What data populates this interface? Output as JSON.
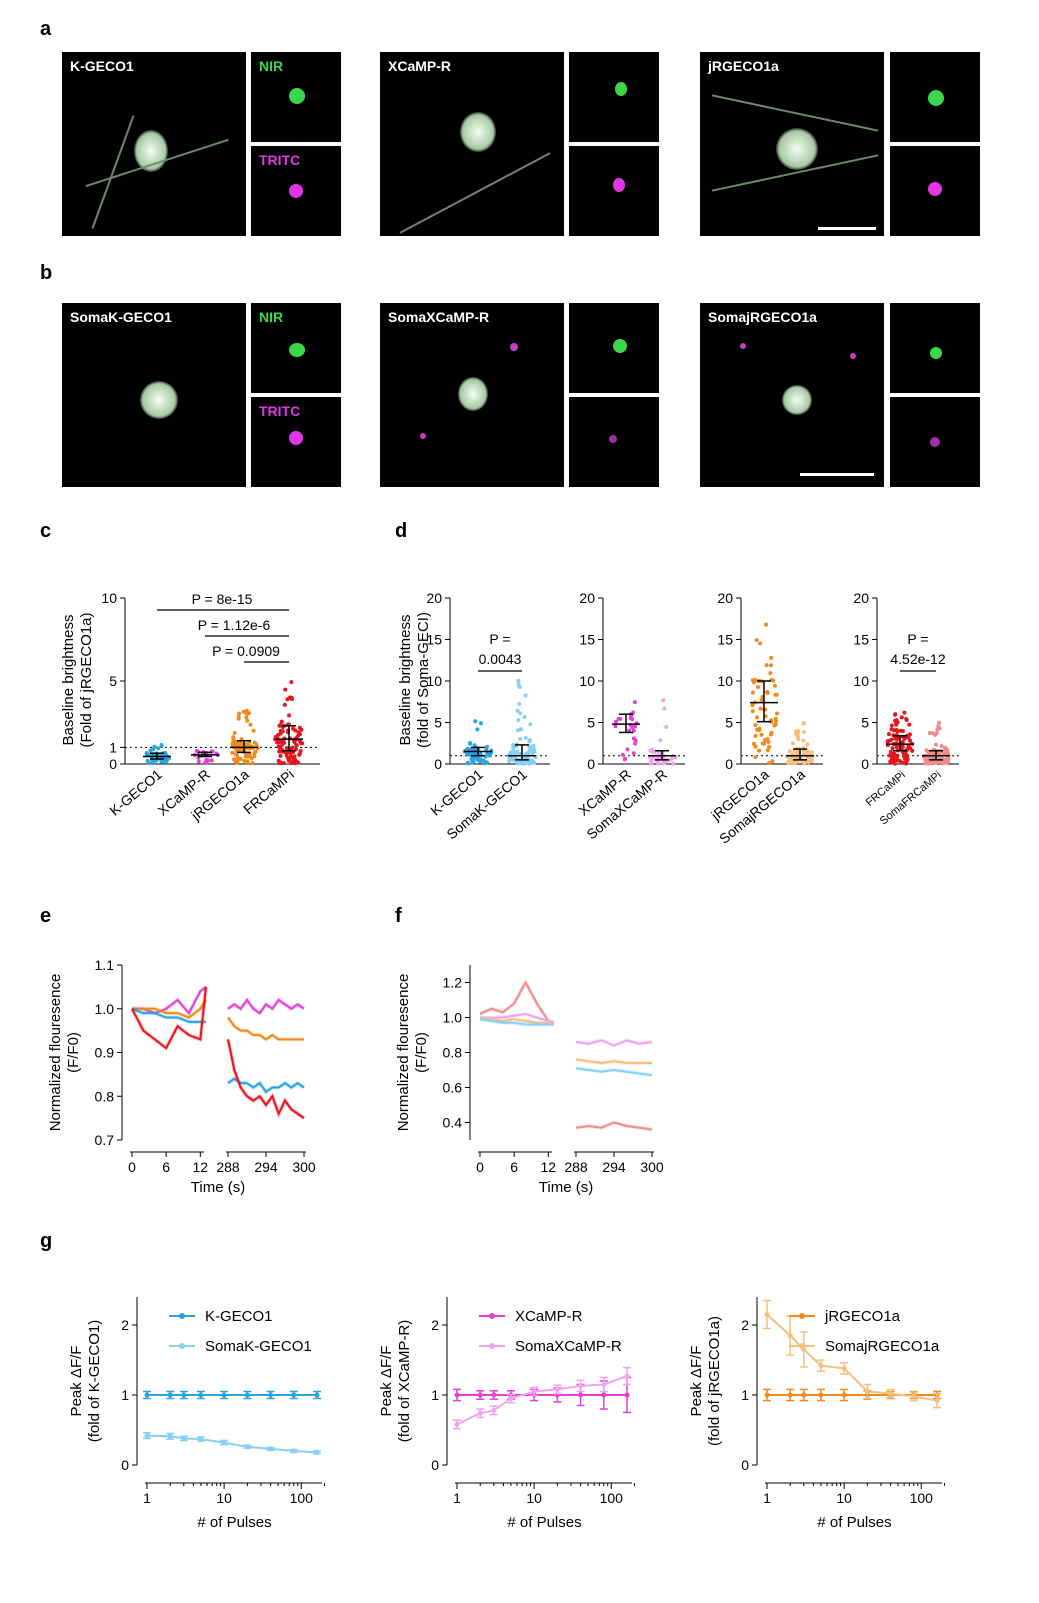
{
  "panels": {
    "a": "a",
    "b": "b",
    "c": "c",
    "d": "d",
    "e": "e",
    "f": "f",
    "g": "g"
  },
  "micro_a": {
    "names": [
      "K-GECO1",
      "XCaMP-R",
      "jRGECO1a"
    ],
    "nir": "NIR",
    "tritc": "TRITC"
  },
  "micro_b": {
    "names": [
      "SomaK-GECO1",
      "SomaXCaMP-R",
      "SomajRGECO1a"
    ],
    "nir": "NIR",
    "tritc": "TRITC"
  },
  "colors": {
    "kgeco": "#2aa3df",
    "kgeco_soma": "#86d0f2",
    "xcamp": "#e43fd7",
    "xcamp_soma": "#f0a3f0",
    "jrgeco": "#f08a1c",
    "jrgeco_soma": "#f5c07e",
    "frcamp": "#e8141c",
    "frcamp_soma": "#f08c8c",
    "nir_green": "#3cd64a",
    "tritc_magenta": "#e135e6"
  },
  "chart_data": [
    {
      "id": "c",
      "type": "scatter",
      "ylabel": "Baseline brightness\n(Fold of jRGECO1a)",
      "ylabel_lines": [
        "Baseline brightness",
        "(Fold of jRGECO1a)"
      ],
      "yticks": [
        "0",
        "1",
        "5",
        "10"
      ],
      "ylim": [
        0,
        10
      ],
      "categories": [
        "K-GECO1",
        "XCaMP-R",
        "jRGECO1a",
        "FRCaMPi"
      ],
      "medians": [
        0.45,
        0.55,
        1.0,
        1.5
      ],
      "iqr": [
        [
          0.3,
          0.65
        ],
        [
          0.45,
          0.7
        ],
        [
          0.7,
          1.4
        ],
        [
          0.8,
          2.3
        ]
      ],
      "max": [
        1.3,
        0.8,
        3.3,
        5.0
      ],
      "reference_line": 1,
      "annotations": [
        "P = 8e-15",
        "P = 1.12e-6",
        "P = 0.0909"
      ]
    },
    {
      "id": "d",
      "type": "scatter",
      "ylabel_lines": [
        "Baseline brightness",
        "(fold of Soma-GECI)"
      ],
      "yticks": [
        "0",
        "5",
        "10",
        "15",
        "20"
      ],
      "ylim": [
        0,
        20
      ],
      "groups": [
        {
          "categories": [
            "K-GECO1",
            "SomaK-GECO1"
          ],
          "medians": [
            1.5,
            1.0
          ],
          "iqr": [
            [
              1.0,
              2.0
            ],
            [
              0.5,
              2.3
            ]
          ],
          "max": [
            5.2,
            11.0
          ],
          "annotation": [
            "P =",
            "0.0043"
          ]
        },
        {
          "categories": [
            "XCaMP-R",
            "SomaXCaMP-R"
          ],
          "medians": [
            4.8,
            1.0
          ],
          "iqr": [
            [
              3.8,
              6.0
            ],
            [
              0.5,
              1.6
            ]
          ],
          "max": [
            8.8,
            8.5
          ],
          "annotation": []
        },
        {
          "categories": [
            "jRGECO1a",
            "SomajRGECO1a"
          ],
          "medians": [
            7.4,
            1.0
          ],
          "iqr": [
            [
              5.1,
              10.0
            ],
            [
              0.5,
              1.8
            ]
          ],
          "max": [
            19.5,
            5.0
          ],
          "annotation": []
        },
        {
          "categories": [
            "FRCaMPi",
            "SomaFRCaMPi"
          ],
          "medians": [
            2.4,
            1.0
          ],
          "iqr": [
            [
              1.6,
              3.4
            ],
            [
              0.5,
              1.6
            ]
          ],
          "max": [
            7.5,
            5.0
          ],
          "annotation": [
            "P =",
            "4.52e-12"
          ]
        }
      ],
      "reference_line": 1
    },
    {
      "id": "e",
      "type": "line",
      "ylabel_lines": [
        "Normalized flouresence",
        "(F/F0)"
      ],
      "xlabel": "Time (s)",
      "yticks": [
        "0.7",
        "0.8",
        "0.9",
        "1.0",
        "1.1"
      ],
      "ylim": [
        0.7,
        1.1
      ],
      "xticks_left": [
        "0",
        "6",
        "12"
      ],
      "xticks_right": [
        "288",
        "294",
        "300"
      ],
      "x_left": [
        0,
        2,
        4,
        6,
        8,
        10,
        12,
        13
      ],
      "x_right": [
        288,
        289,
        290,
        291,
        292,
        293,
        294,
        295,
        296,
        297,
        298,
        299,
        300
      ],
      "series": [
        {
          "color": "#e43fd7",
          "left": [
            1.0,
            1.0,
            0.99,
            1.0,
            1.02,
            0.99,
            1.04,
            1.05
          ],
          "right": [
            1.0,
            1.01,
            1.0,
            1.02,
            1.0,
            0.99,
            1.01,
            1.0,
            1.02,
            1.01,
            1.0,
            1.01,
            1.0
          ]
        },
        {
          "color": "#f08a1c",
          "left": [
            1.0,
            1.0,
            1.0,
            0.99,
            0.99,
            0.98,
            1.0,
            1.02
          ],
          "right": [
            0.98,
            0.96,
            0.95,
            0.95,
            0.94,
            0.94,
            0.93,
            0.94,
            0.93,
            0.93,
            0.93,
            0.93,
            0.93
          ]
        },
        {
          "color": "#2aa3df",
          "left": [
            1.0,
            0.99,
            0.99,
            0.98,
            0.98,
            0.97,
            0.97,
            0.97
          ],
          "right": [
            0.83,
            0.84,
            0.83,
            0.83,
            0.82,
            0.83,
            0.81,
            0.82,
            0.82,
            0.83,
            0.82,
            0.83,
            0.82
          ]
        },
        {
          "color": "#e8141c",
          "left": [
            1.0,
            0.95,
            0.93,
            0.91,
            0.96,
            0.94,
            0.93,
            1.05
          ],
          "right": [
            0.93,
            0.86,
            0.82,
            0.8,
            0.79,
            0.8,
            0.78,
            0.8,
            0.76,
            0.79,
            0.77,
            0.76,
            0.75
          ]
        }
      ]
    },
    {
      "id": "f",
      "type": "line",
      "ylabel_lines": [
        "Normalized flouresence",
        "(F/F0)"
      ],
      "xlabel": "Time (s)",
      "yticks": [
        "0.4",
        "0.6",
        "0.8",
        "1.0",
        "1.2"
      ],
      "ylim": [
        0.3,
        1.3
      ],
      "xticks_left": [
        "0",
        "6",
        "12"
      ],
      "xticks_right": [
        "288",
        "294",
        "300"
      ],
      "x_left": [
        0,
        2,
        4,
        6,
        8,
        10,
        12,
        13
      ],
      "x_right": [
        288,
        290,
        292,
        294,
        296,
        298,
        300
      ],
      "series": [
        {
          "color": "#f08c8c",
          "left": [
            1.02,
            1.05,
            1.03,
            1.08,
            1.2,
            1.08,
            0.98,
            0.97
          ],
          "right": [
            0.37,
            0.38,
            0.37,
            0.4,
            0.38,
            0.37,
            0.36
          ]
        },
        {
          "color": "#f0a3f0",
          "left": [
            1.0,
            1.0,
            1.0,
            1.01,
            1.02,
            1.0,
            0.98,
            0.97
          ],
          "right": [
            0.86,
            0.85,
            0.87,
            0.84,
            0.87,
            0.85,
            0.86
          ]
        },
        {
          "color": "#f5c07e",
          "left": [
            1.0,
            0.99,
            0.98,
            0.99,
            0.98,
            0.97,
            0.97,
            0.96
          ],
          "right": [
            0.76,
            0.75,
            0.74,
            0.75,
            0.74,
            0.74,
            0.74
          ]
        },
        {
          "color": "#86d0f2",
          "left": [
            0.99,
            0.98,
            0.97,
            0.97,
            0.96,
            0.96,
            0.96,
            0.96
          ],
          "right": [
            0.71,
            0.7,
            0.69,
            0.7,
            0.69,
            0.68,
            0.67
          ]
        }
      ]
    },
    {
      "id": "g",
      "type": "line",
      "xscale": "log",
      "xlabel": "# of Pulses",
      "x": [
        1,
        2,
        3,
        5,
        10,
        20,
        40,
        80,
        160
      ],
      "yticks": [
        "0",
        "1",
        "2"
      ],
      "ylim": [
        0,
        2.4
      ],
      "xticks": [
        "1",
        "10",
        "100"
      ],
      "plots": [
        {
          "ylabel_lines": [
            "Peak ΔF/F",
            "(fold of K-GECO1)"
          ],
          "series": [
            {
              "name": "K-GECO1",
              "color": "#2aa3df",
              "values": [
                1,
                1,
                1,
                1,
                1,
                1,
                1,
                1,
                1
              ],
              "err": [
                0.05,
                0.05,
                0.05,
                0.05,
                0.05,
                0.05,
                0.05,
                0.05,
                0.05
              ]
            },
            {
              "name": "SomaK-GECO1",
              "color": "#86d0f2",
              "values": [
                0.42,
                0.41,
                0.38,
                0.37,
                0.32,
                0.26,
                0.23,
                0.2,
                0.18
              ],
              "err": [
                0.04,
                0.04,
                0.03,
                0.03,
                0.03,
                0.02,
                0.02,
                0.02,
                0.02
              ]
            }
          ]
        },
        {
          "ylabel_lines": [
            "Peak ΔF/F",
            "(fold of XCaMP-R)"
          ],
          "series": [
            {
              "name": "XCaMP-R",
              "color": "#e43fd7",
              "values": [
                1,
                1,
                1,
                1,
                1,
                1,
                1,
                1,
                1
              ],
              "err": [
                0.08,
                0.06,
                0.06,
                0.06,
                0.08,
                0.1,
                0.15,
                0.2,
                0.25
              ]
            },
            {
              "name": "SomaXCaMP-R",
              "color": "#f0a3f0",
              "values": [
                0.58,
                0.74,
                0.78,
                0.95,
                1.05,
                1.08,
                1.13,
                1.15,
                1.27
              ],
              "err": [
                0.06,
                0.06,
                0.06,
                0.06,
                0.06,
                0.06,
                0.08,
                0.1,
                0.12
              ]
            }
          ]
        },
        {
          "ylabel_lines": [
            "Peak ΔF/F",
            "(fold of jRGECO1a)"
          ],
          "series": [
            {
              "name": "jRGECO1a",
              "color": "#f08a1c",
              "values": [
                1,
                1,
                1,
                1,
                1,
                1,
                1,
                1,
                1
              ],
              "err": [
                0.08,
                0.08,
                0.08,
                0.08,
                0.08,
                0.06,
                0.05,
                0.05,
                0.05
              ]
            },
            {
              "name": "SomajRGECO1a",
              "color": "#f5c07e",
              "values": [
                2.15,
                1.85,
                1.65,
                1.42,
                1.38,
                1.05,
                1.02,
                0.98,
                0.92
              ],
              "err": [
                0.2,
                0.28,
                0.25,
                0.08,
                0.08,
                0.1,
                0.06,
                0.06,
                0.1
              ]
            }
          ]
        }
      ]
    }
  ]
}
